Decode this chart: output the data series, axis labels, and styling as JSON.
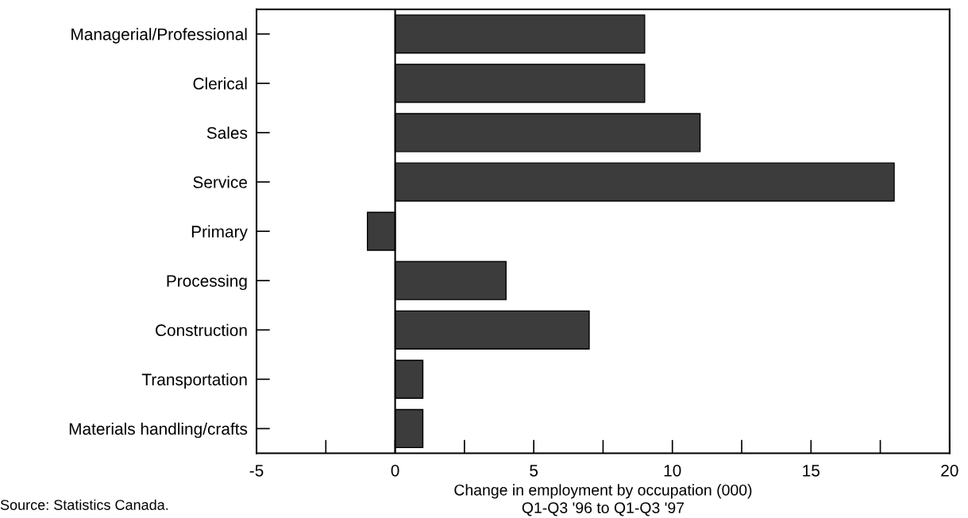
{
  "chart_data": {
    "type": "bar",
    "orientation": "horizontal",
    "categories": [
      "Managerial/Professional",
      "Clerical",
      "Sales",
      "Service",
      "Primary",
      "Processing",
      "Construction",
      "Transportation",
      "Materials handling/crafts"
    ],
    "values": [
      9,
      9,
      11,
      18,
      -1,
      4,
      7,
      1,
      1
    ],
    "color": "#3c3c3c",
    "xlabel": "Change in employment by occupation (000)\nQ1-Q3 '96 to Q1-Q3 '97",
    "xlim": [
      -5,
      20
    ],
    "xticks": [
      -5,
      0,
      5,
      10,
      15,
      20
    ],
    "ref_lines": [
      {
        "axis": "x",
        "value": 0,
        "color": "#000000"
      }
    ],
    "annotations": [
      "Source: Statistics Canada."
    ],
    "grid": false,
    "legend": false
  }
}
